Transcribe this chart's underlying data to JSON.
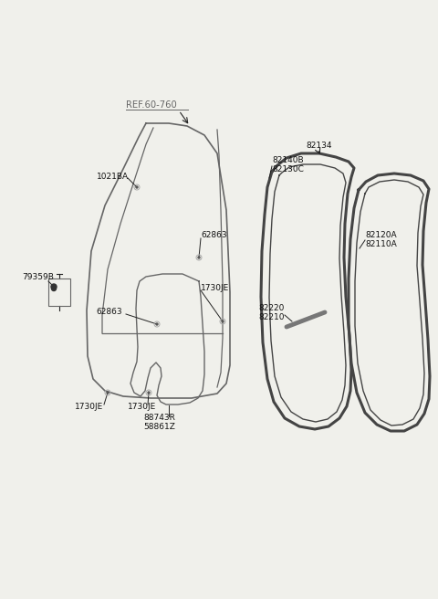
{
  "background_color": "#f0f0eb",
  "labels": {
    "REF_60_760": "REF.60-760",
    "1021BA": "1021BA",
    "62863_top": "62863",
    "62863_mid": "62863",
    "1730JE_right": "1730JE",
    "1730JE_bl": "1730JE",
    "1730JE_bm": "1730JE",
    "79359B": "79359B",
    "88743R": "88743R",
    "58861Z": "58861Z",
    "82134": "82134",
    "82140B": "82140B",
    "82130C": "82130C",
    "82120A": "82120A",
    "82110A": "82110A",
    "82220": "82220",
    "82210": "82210"
  },
  "font_size_label": 6.5,
  "line_color": "#666666",
  "line_color_dark": "#222222",
  "text_color": "#111111",
  "seal_color": "#444444"
}
